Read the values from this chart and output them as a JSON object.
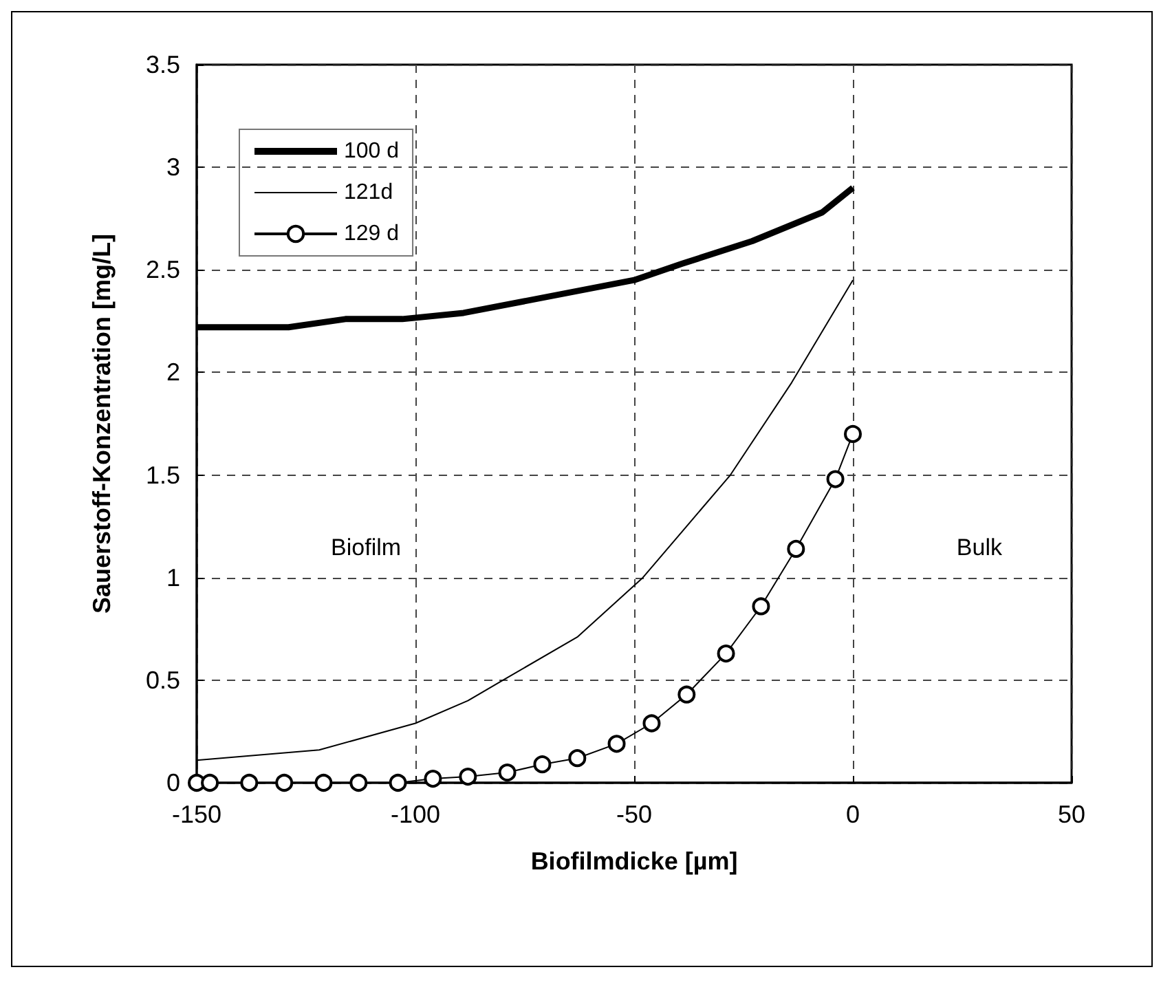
{
  "chart_data": {
    "type": "line",
    "xlabel": "Biofilmdicke [µm]",
    "ylabel": "Sauerstoff-Konzentration [mg/L]",
    "xlim": [
      -150,
      50
    ],
    "xticks": [
      -150,
      -100,
      -50,
      0,
      50
    ],
    "ylim": [
      0,
      3.5
    ],
    "yticks": [
      0,
      0.5,
      1,
      1.5,
      2,
      2.5,
      3,
      3.5
    ],
    "grid": true,
    "legend": "top left",
    "line_style": "solid",
    "annotations": [
      "Biofilm",
      "Bulk"
    ],
    "series": [
      {
        "name": "100 d",
        "color": "#000000",
        "marker": "none",
        "x": [
          -150,
          -129,
          -116,
          -103,
          -89,
          -50,
          -39,
          -23,
          -7,
          0
        ],
        "values": [
          2.22,
          2.22,
          2.26,
          2.26,
          2.29,
          2.45,
          2.53,
          2.64,
          2.78,
          2.9
        ]
      },
      {
        "name": "121d",
        "color": "#000000",
        "marker": "none",
        "x": [
          -150,
          -122,
          -100,
          -88,
          -80,
          -63,
          -48,
          -28,
          -14,
          0
        ],
        "values": [
          0.11,
          0.16,
          0.29,
          0.4,
          0.5,
          0.71,
          1.0,
          1.5,
          1.95,
          2.45
        ]
      },
      {
        "name": "129 d",
        "color": "#000000",
        "marker": "circle",
        "x": [
          -150,
          -147,
          -138,
          -130,
          -121,
          -113,
          -104,
          -96,
          -88,
          -79,
          -71,
          -63,
          -54,
          -46,
          -38,
          -29,
          -21,
          -13,
          -4,
          0
        ],
        "values": [
          0,
          0,
          0,
          0,
          0,
          0,
          0,
          0.02,
          0.03,
          0.05,
          0.09,
          0.12,
          0.19,
          0.29,
          0.43,
          0.63,
          0.86,
          1.14,
          1.48,
          1.7
        ]
      }
    ]
  }
}
